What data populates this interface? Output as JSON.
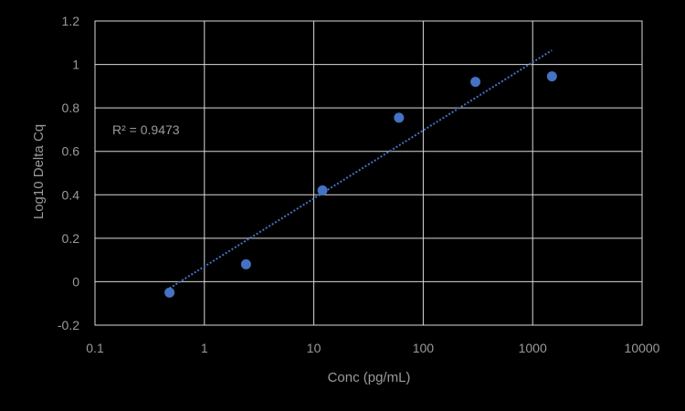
{
  "chart_data": {
    "type": "scatter",
    "title": "",
    "xlabel": "Conc (pg/mL)",
    "ylabel": "Log10 Delta Cq",
    "x_scale": "log10",
    "xlim": [
      0.1,
      10000
    ],
    "ylim": [
      -0.2,
      1.2
    ],
    "x_ticks": [
      "0.1",
      "1",
      "10",
      "100",
      "1000",
      "10000"
    ],
    "y_ticks": [
      "-0.2",
      "0",
      "0.2",
      "0.4",
      "0.6",
      "0.8",
      "1",
      "1.2"
    ],
    "grid": true,
    "legend": "none",
    "series": [
      {
        "points": [
          {
            "x": 0.48,
            "y": -0.05
          },
          {
            "x": 2.4,
            "y": 0.08
          },
          {
            "x": 12,
            "y": 0.42
          },
          {
            "x": 60,
            "y": 0.755
          },
          {
            "x": 300,
            "y": 0.92
          },
          {
            "x": 1500,
            "y": 0.945
          }
        ],
        "color": "#4472c4"
      }
    ],
    "trendline": {
      "type": "log",
      "from": {
        "x": 0.48,
        "y": -0.03
      },
      "to": {
        "x": 1500,
        "y": 1.065
      },
      "color": "#4472c4"
    },
    "annotation": "R² = 0.9473"
  }
}
